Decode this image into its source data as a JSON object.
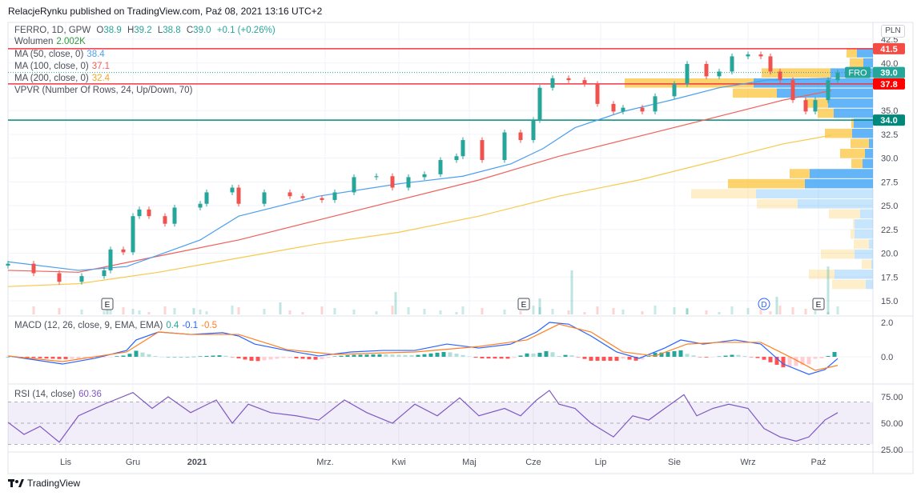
{
  "header": {
    "published": "RelacjeRynku published on TradingView.com, Paź 08, 2021 13:16 UTC+2"
  },
  "legend": {
    "symbol": "FERRO, 1D, GPW",
    "o_label": "O",
    "o": "38.9",
    "h_label": "H",
    "h": "39.2",
    "l_label": "L",
    "l": "38.8",
    "c_label": "C",
    "c": "39.0",
    "change": "+0.1 (+0.26%)",
    "volume_label": "Wolumen",
    "volume": "2.002K",
    "ma50_label": "MA (50, close, 0)",
    "ma50": "38.4",
    "ma100_label": "MA (100, close, 0)",
    "ma100": "37.1",
    "ma200_label": "MA (200, close, 0)",
    "ma200": "32.4",
    "vpvr_label": "VPVR (Number Of Rows, 24, Up/Down, 70)",
    "macd_label": "MACD (12, 26, close, 9, EMA, EMA)",
    "macd_hist": "0.4",
    "macd_line": "-0.1",
    "macd_signal": "-0.5",
    "rsi_label": "RSI (14, close)",
    "rsi": "60.36"
  },
  "currency": "PLN",
  "price_tags": {
    "symbol_tag": "FRO",
    "last": "39.0",
    "line_high": "41.5",
    "line_mid": "37.8",
    "line_low": "34.0"
  },
  "footer": {
    "brand": "TradingView"
  },
  "colors": {
    "up": "#26a69a",
    "down": "#ef5350",
    "ma50": "#4a9ff0",
    "ma100": "#f0605a",
    "ma200": "#f7c94a",
    "macd": "#2962ff",
    "signal": "#ff7f1f",
    "rsi": "#7e57c2",
    "hline_red": "#f23645",
    "hline_teal": "#00897b"
  },
  "chart_data": {
    "type": "candlestick",
    "title": "FERRO, 1D, GPW",
    "x_unit": "trading day index",
    "time_ticks": [
      {
        "t": 18,
        "label": "Lis"
      },
      {
        "t": 39,
        "label": "Gru"
      },
      {
        "t": 59,
        "label": "2021"
      },
      {
        "t": 99,
        "label": "Mrz."
      },
      {
        "t": 122,
        "label": "Kwi"
      },
      {
        "t": 144,
        "label": "Maj"
      },
      {
        "t": 164,
        "label": "Cze"
      },
      {
        "t": 185,
        "label": "Lip"
      },
      {
        "t": 208,
        "label": "Sie"
      },
      {
        "t": 231,
        "label": "Wrz"
      },
      {
        "t": 253,
        "label": "Paź"
      }
    ],
    "price_axis": {
      "ylim": [
        14.3,
        43.5
      ],
      "ticks": [
        "42.5",
        "40.0",
        "35.0",
        "32.5",
        "30.0",
        "27.5",
        "25.0",
        "22.5",
        "20.0",
        "17.5",
        "15.0"
      ]
    },
    "closes": [
      [
        0,
        18.9
      ],
      [
        8,
        17.9
      ],
      [
        16,
        17.0
      ],
      [
        23,
        17.6
      ],
      [
        30,
        18.2
      ],
      [
        32,
        20.4
      ],
      [
        36,
        20.1
      ],
      [
        39,
        23.9
      ],
      [
        41,
        24.6
      ],
      [
        44,
        23.9
      ],
      [
        49,
        23.1
      ],
      [
        52,
        24.8
      ],
      [
        60,
        25.2
      ],
      [
        62,
        26.4
      ],
      [
        70,
        26.9
      ],
      [
        72,
        25.2
      ],
      [
        80,
        26.4
      ],
      [
        88,
        26.0
      ],
      [
        92,
        25.8
      ],
      [
        98,
        25.6
      ],
      [
        102,
        26.4
      ],
      [
        108,
        28.0
      ],
      [
        115,
        28.1
      ],
      [
        120,
        26.9
      ],
      [
        125,
        28.0
      ],
      [
        130,
        28.3
      ],
      [
        135,
        29.8
      ],
      [
        140,
        30.2
      ],
      [
        142,
        31.9
      ],
      [
        148,
        29.8
      ],
      [
        155,
        32.7
      ],
      [
        160,
        31.9
      ],
      [
        164,
        34.0
      ],
      [
        166,
        37.4
      ],
      [
        170,
        38.4
      ],
      [
        175,
        38.2
      ],
      [
        180,
        37.8
      ],
      [
        184,
        35.7
      ],
      [
        189,
        34.9
      ],
      [
        192,
        35.3
      ],
      [
        198,
        34.9
      ],
      [
        202,
        36.5
      ],
      [
        208,
        37.8
      ],
      [
        212,
        39.9
      ],
      [
        218,
        38.6
      ],
      [
        222,
        39.1
      ],
      [
        226,
        40.7
      ],
      [
        231,
        40.9
      ],
      [
        235,
        40.7
      ],
      [
        238,
        39.1
      ],
      [
        241,
        38.2
      ],
      [
        245,
        36.1
      ],
      [
        249,
        34.9
      ],
      [
        252,
        36.1
      ],
      [
        256,
        38.2
      ],
      [
        259,
        39.0
      ]
    ],
    "ma50": [
      [
        0,
        19.1
      ],
      [
        22,
        18.2
      ],
      [
        37,
        18.6
      ],
      [
        60,
        21.4
      ],
      [
        72,
        23.9
      ],
      [
        97,
        26.0
      ],
      [
        122,
        27.3
      ],
      [
        142,
        28.1
      ],
      [
        157,
        29.4
      ],
      [
        167,
        31.0
      ],
      [
        177,
        33.2
      ],
      [
        192,
        34.9
      ],
      [
        207,
        36.1
      ],
      [
        222,
        37.4
      ],
      [
        237,
        38.2
      ],
      [
        257,
        38.4
      ]
    ],
    "ma100": [
      [
        0,
        18.2
      ],
      [
        22,
        18.0
      ],
      [
        47,
        19.7
      ],
      [
        72,
        21.4
      ],
      [
        97,
        23.5
      ],
      [
        122,
        25.6
      ],
      [
        147,
        27.7
      ],
      [
        172,
        30.2
      ],
      [
        197,
        32.3
      ],
      [
        222,
        34.4
      ],
      [
        242,
        36.1
      ],
      [
        257,
        37.1
      ]
    ],
    "ma200": [
      [
        0,
        16.5
      ],
      [
        22,
        16.8
      ],
      [
        47,
        18.0
      ],
      [
        72,
        19.5
      ],
      [
        97,
        21.0
      ],
      [
        122,
        22.2
      ],
      [
        147,
        23.9
      ],
      [
        172,
        26.0
      ],
      [
        197,
        27.7
      ],
      [
        222,
        29.8
      ],
      [
        242,
        31.5
      ],
      [
        257,
        32.4
      ]
    ],
    "volume_spikes": [
      [
        31,
        8
      ],
      [
        58,
        8
      ],
      [
        85,
        15
      ],
      [
        121,
        28
      ],
      [
        166,
        20
      ],
      [
        176,
        55
      ],
      [
        212,
        8
      ],
      [
        240,
        22
      ],
      [
        256,
        60
      ]
    ],
    "events": [
      {
        "t": 31,
        "label": "E"
      },
      {
        "t": 161,
        "label": "E"
      },
      {
        "t": 236,
        "label": "D"
      },
      {
        "t": 253,
        "label": "E"
      }
    ],
    "horizontal_lines": [
      {
        "price": 41.5,
        "color": "red"
      },
      {
        "price": 37.8,
        "color": "red"
      },
      {
        "price": 34.0,
        "color": "teal"
      }
    ],
    "vpvr": {
      "price_range": [
        16.2,
        41.6
      ],
      "value_area_rows": 14,
      "rows_top_to_bottom": [
        {
          "up": 20,
          "down": 13
        },
        {
          "up": 12,
          "down": 17
        },
        {
          "up": 53,
          "down": 86
        },
        {
          "up": 149,
          "down": 161
        },
        {
          "up": 120,
          "down": 55
        },
        {
          "up": 56,
          "down": 29
        },
        {
          "up": 49,
          "down": 20
        },
        {
          "up": 24,
          "down": 3
        },
        {
          "up": 26,
          "down": 34
        },
        {
          "up": 5,
          "down": 23
        },
        {
          "up": 10,
          "down": 31
        },
        {
          "up": 13,
          "down": 14
        },
        {
          "up": 79,
          "down": 25
        },
        {
          "up": 85,
          "down": 96
        },
        {
          "up": 146,
          "down": 81
        },
        {
          "up": 94,
          "down": 51
        },
        {
          "up": 16,
          "down": 39
        },
        {
          "up": 23,
          "down": 2
        },
        {
          "up": 23,
          "down": 5
        },
        {
          "up": 5,
          "down": 19
        },
        {
          "up": 23,
          "down": 42
        },
        {
          "up": 2,
          "down": 12
        },
        {
          "up": 48,
          "down": 32
        },
        {
          "up": 9,
          "down": 42
        }
      ]
    },
    "macd": {
      "axis_ticks": [
        "2.0",
        "0.0"
      ],
      "macd_line": [
        [
          0,
          0.05
        ],
        [
          12,
          -0.28
        ],
        [
          17,
          -0.42
        ],
        [
          27,
          -0.09
        ],
        [
          37,
          0.37
        ],
        [
          40,
          0.98
        ],
        [
          47,
          1.44
        ],
        [
          57,
          1.3
        ],
        [
          67,
          1.4
        ],
        [
          72,
          1.21
        ],
        [
          77,
          0.74
        ],
        [
          87,
          0.37
        ],
        [
          97,
          0.05
        ],
        [
          107,
          0.28
        ],
        [
          117,
          0.37
        ],
        [
          127,
          0.37
        ],
        [
          137,
          0.74
        ],
        [
          147,
          0.51
        ],
        [
          157,
          0.74
        ],
        [
          165,
          1.44
        ],
        [
          169,
          2.0
        ],
        [
          175,
          1.9
        ],
        [
          182,
          1.21
        ],
        [
          190,
          0.28
        ],
        [
          197,
          -0.09
        ],
        [
          205,
          0.51
        ],
        [
          210,
          0.98
        ],
        [
          217,
          0.74
        ],
        [
          227,
          0.98
        ],
        [
          235,
          0.74
        ],
        [
          242,
          -0.42
        ],
        [
          250,
          -1.02
        ],
        [
          255,
          -0.74
        ],
        [
          259,
          -0.1
        ]
      ],
      "signal_line": [
        [
          0,
          0.05
        ],
        [
          17,
          -0.28
        ],
        [
          37,
          0.28
        ],
        [
          47,
          1.44
        ],
        [
          57,
          1.3
        ],
        [
          72,
          1.3
        ],
        [
          87,
          0.42
        ],
        [
          102,
          0.14
        ],
        [
          127,
          0.28
        ],
        [
          147,
          0.6
        ],
        [
          162,
          0.98
        ],
        [
          172,
          1.9
        ],
        [
          182,
          1.44
        ],
        [
          192,
          0.28
        ],
        [
          202,
          0.05
        ],
        [
          212,
          0.74
        ],
        [
          222,
          0.84
        ],
        [
          235,
          0.84
        ],
        [
          245,
          -0.09
        ],
        [
          252,
          -0.79
        ],
        [
          259,
          -0.5
        ]
      ]
    },
    "rsi": {
      "axis_ticks": [
        "75.00",
        "50.00",
        "25.00"
      ],
      "band": [
        30,
        70
      ],
      "values": [
        [
          0,
          50.8
        ],
        [
          5,
          39.4
        ],
        [
          10,
          47
        ],
        [
          16,
          32
        ],
        [
          22,
          57
        ],
        [
          30,
          68
        ],
        [
          39,
          79
        ],
        [
          45,
          64
        ],
        [
          50,
          75
        ],
        [
          57,
          60
        ],
        [
          65,
          72
        ],
        [
          70,
          50
        ],
        [
          75,
          68
        ],
        [
          82,
          60
        ],
        [
          90,
          57
        ],
        [
          97,
          53
        ],
        [
          105,
          72
        ],
        [
          112,
          60
        ],
        [
          120,
          50
        ],
        [
          127,
          68
        ],
        [
          134,
          57
        ],
        [
          141,
          74
        ],
        [
          147,
          57
        ],
        [
          155,
          64
        ],
        [
          160,
          57
        ],
        [
          165,
          72
        ],
        [
          169,
          81
        ],
        [
          172,
          68
        ],
        [
          177,
          64
        ],
        [
          182,
          50
        ],
        [
          189,
          37
        ],
        [
          195,
          57
        ],
        [
          200,
          53
        ],
        [
          205,
          64
        ],
        [
          211,
          77
        ],
        [
          215,
          57
        ],
        [
          220,
          64
        ],
        [
          225,
          68
        ],
        [
          231,
          64
        ],
        [
          236,
          45
        ],
        [
          241,
          37
        ],
        [
          246,
          33
        ],
        [
          250,
          37
        ],
        [
          255,
          53
        ],
        [
          259,
          60
        ]
      ]
    }
  }
}
